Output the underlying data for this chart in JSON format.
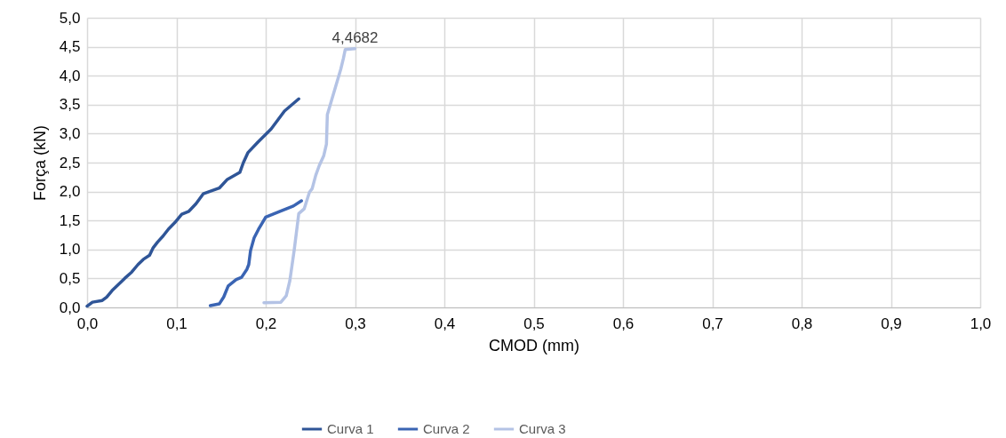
{
  "chart_data": {
    "type": "line",
    "xlabel": "CMOD (mm)",
    "ylabel": "Força (kN)",
    "xlim": [
      0,
      1
    ],
    "ylim": [
      0,
      5
    ],
    "xticks": [
      {
        "value": 0,
        "label": "0,0"
      },
      {
        "value": 0.1,
        "label": "0,1"
      },
      {
        "value": 0.2,
        "label": "0,2"
      },
      {
        "value": 0.3,
        "label": "0,3"
      },
      {
        "value": 0.4,
        "label": "0,4"
      },
      {
        "value": 0.5,
        "label": "0,5"
      },
      {
        "value": 0.6,
        "label": "0,6"
      },
      {
        "value": 0.7,
        "label": "0,7"
      },
      {
        "value": 0.8,
        "label": "0,8"
      },
      {
        "value": 0.9,
        "label": "0,9"
      },
      {
        "value": 1,
        "label": "1,0"
      }
    ],
    "yticks": [
      {
        "value": 0,
        "label": "0,0"
      },
      {
        "value": 0.5,
        "label": "0,5"
      },
      {
        "value": 1,
        "label": "1,0"
      },
      {
        "value": 1.5,
        "label": "1,5"
      },
      {
        "value": 2,
        "label": "2,0"
      },
      {
        "value": 2.5,
        "label": "2,5"
      },
      {
        "value": 3,
        "label": "3,0"
      },
      {
        "value": 3.5,
        "label": "3,5"
      },
      {
        "value": 4,
        "label": "4,0"
      },
      {
        "value": 4.5,
        "label": "4,5"
      },
      {
        "value": 5,
        "label": "5,0"
      }
    ],
    "grid": true,
    "legend": "bottom",
    "marker": "none",
    "line_style": "solid",
    "annotations": [
      {
        "text": "4,4682",
        "x": 0.3,
        "y": 4.4682
      }
    ],
    "series": [
      {
        "name": "Curva 1",
        "color": "#2f5597",
        "x": [
          0,
          0.006,
          0.017,
          0.022,
          0.028,
          0.034,
          0.042,
          0.05,
          0.057,
          0.063,
          0.07,
          0.074,
          0.079,
          0.085,
          0.091,
          0.098,
          0.106,
          0.114,
          0.122,
          0.13,
          0.148,
          0.157,
          0.171,
          0.175,
          0.18,
          0.191,
          0.206,
          0.221,
          0.237
        ],
        "values": [
          0.02,
          0.09,
          0.12,
          0.18,
          0.29,
          0.38,
          0.5,
          0.61,
          0.74,
          0.83,
          0.9,
          1.03,
          1.13,
          1.23,
          1.35,
          1.46,
          1.61,
          1.66,
          1.79,
          1.96,
          2.06,
          2.21,
          2.33,
          2.5,
          2.67,
          2.85,
          3.08,
          3.39,
          3.6
        ]
      },
      {
        "name": "Curva 2",
        "color": "#3a64b3",
        "x": [
          0.138,
          0.148,
          0.153,
          0.158,
          0.167,
          0.173,
          0.179,
          0.181,
          0.183,
          0.187,
          0.192,
          0.2,
          0.216,
          0.231,
          0.24
        ],
        "values": [
          0.03,
          0.06,
          0.18,
          0.37,
          0.48,
          0.52,
          0.66,
          0.74,
          0.98,
          1.2,
          1.35,
          1.56,
          1.66,
          1.75,
          1.84
        ]
      },
      {
        "name": "Curva 3",
        "color": "#b4c3e5",
        "x": [
          0.198,
          0.217,
          0.223,
          0.227,
          0.232,
          0.237,
          0.243,
          0.249,
          0.252,
          0.256,
          0.26,
          0.265,
          0.268,
          0.269,
          0.274,
          0.284,
          0.287,
          0.289,
          0.3
        ],
        "values": [
          0.08,
          0.09,
          0.2,
          0.46,
          1.0,
          1.62,
          1.7,
          1.99,
          2.05,
          2.28,
          2.45,
          2.62,
          2.82,
          3.33,
          3.59,
          4.11,
          4.3,
          4.45,
          4.4682
        ]
      }
    ]
  }
}
